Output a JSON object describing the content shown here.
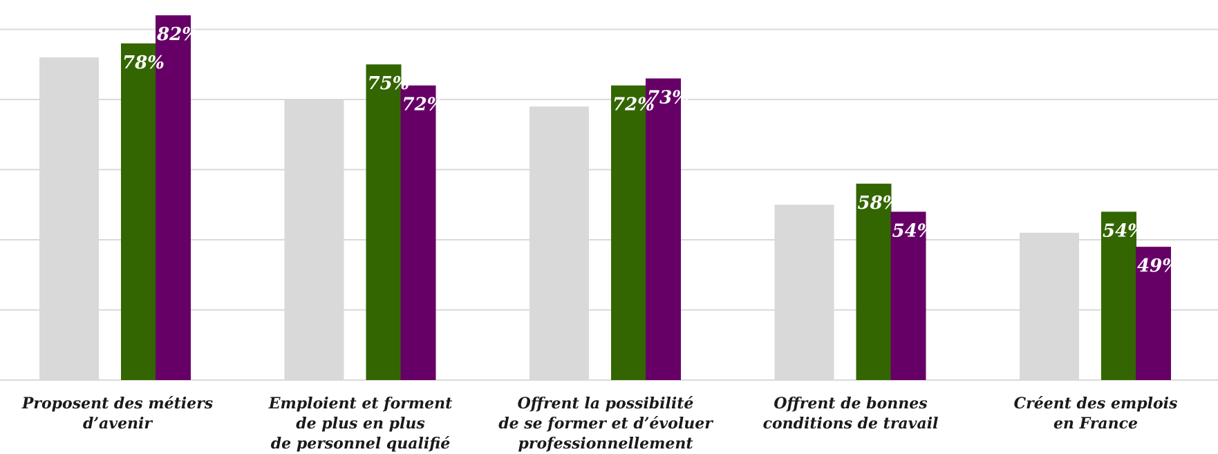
{
  "chart_data": {
    "type": "bar",
    "categories": [
      "Proposent des métiers\nd’avenir",
      "Emploient et forment\nde plus en plus\nde personnel qualifié",
      "Offrent la possibilité\nde se former et d’évoluer\nprofessionnellement",
      "Offrent de bonnes\nconditions de travail",
      "Créent des emplois\nen France"
    ],
    "series": [
      {
        "values": [
          76,
          70,
          69,
          55,
          51
        ],
        "color": "#d9d9d9",
        "labels": [
          "",
          "",
          "",
          "",
          ""
        ]
      },
      {
        "values": [
          78,
          75,
          72,
          58,
          54
        ],
        "color": "#336600",
        "labels": [
          "78%",
          "75%",
          "72%",
          "58%",
          "54%"
        ]
      },
      {
        "values": [
          82,
          72,
          73,
          54,
          49
        ],
        "color": "#660066",
        "labels": [
          "82%",
          "72%",
          "73%",
          "54%",
          "49%"
        ]
      }
    ],
    "ylim": [
      30,
      83
    ],
    "grid": true,
    "gridlines": [
      30,
      40,
      50,
      60,
      70,
      80
    ]
  }
}
